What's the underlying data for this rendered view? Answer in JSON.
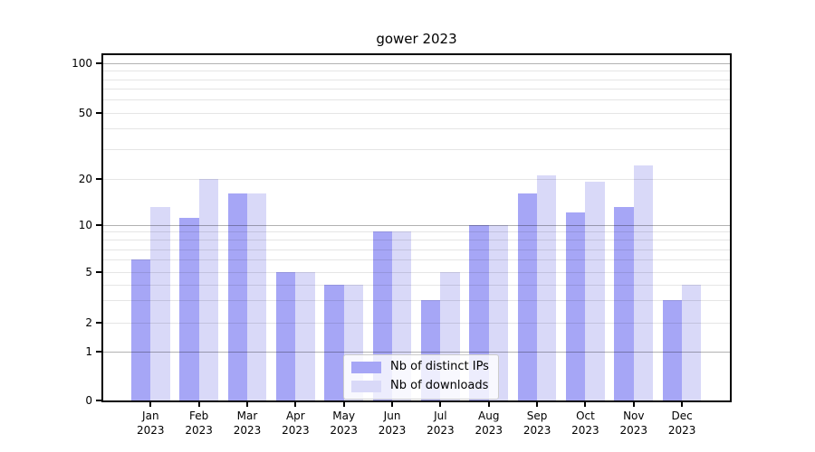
{
  "title": "gower 2023",
  "chart_data": {
    "type": "bar",
    "title": "gower 2023",
    "categories": [
      "Jan",
      "Feb",
      "Mar",
      "Apr",
      "May",
      "Jun",
      "Jul",
      "Aug",
      "Sep",
      "Oct",
      "Nov",
      "Dec"
    ],
    "x_tick_line2": "2023",
    "series": [
      {
        "name": "Nb of distinct IPs",
        "color": "#a6a6f6",
        "values": [
          6,
          11,
          16,
          5,
          4,
          9,
          3,
          10,
          16,
          12,
          13,
          3
        ]
      },
      {
        "name": "Nb of downloads",
        "color": "#d9d9f8",
        "values": [
          13,
          20,
          16,
          5,
          4,
          9,
          5,
          10,
          21,
          19,
          24,
          4
        ]
      }
    ],
    "yticks": [
      0,
      1,
      2,
      5,
      10,
      20,
      50,
      100
    ],
    "major_gridlines": [
      1,
      10,
      100
    ],
    "light_gridlines": [
      2,
      3,
      4,
      5,
      6,
      7,
      8,
      9,
      20,
      30,
      40,
      50,
      60,
      70,
      80,
      90
    ],
    "yscale": "symlog",
    "ylim": [
      0,
      114
    ],
    "xlabel": "",
    "ylabel": "",
    "grid": true,
    "legend_position": "lower center"
  }
}
